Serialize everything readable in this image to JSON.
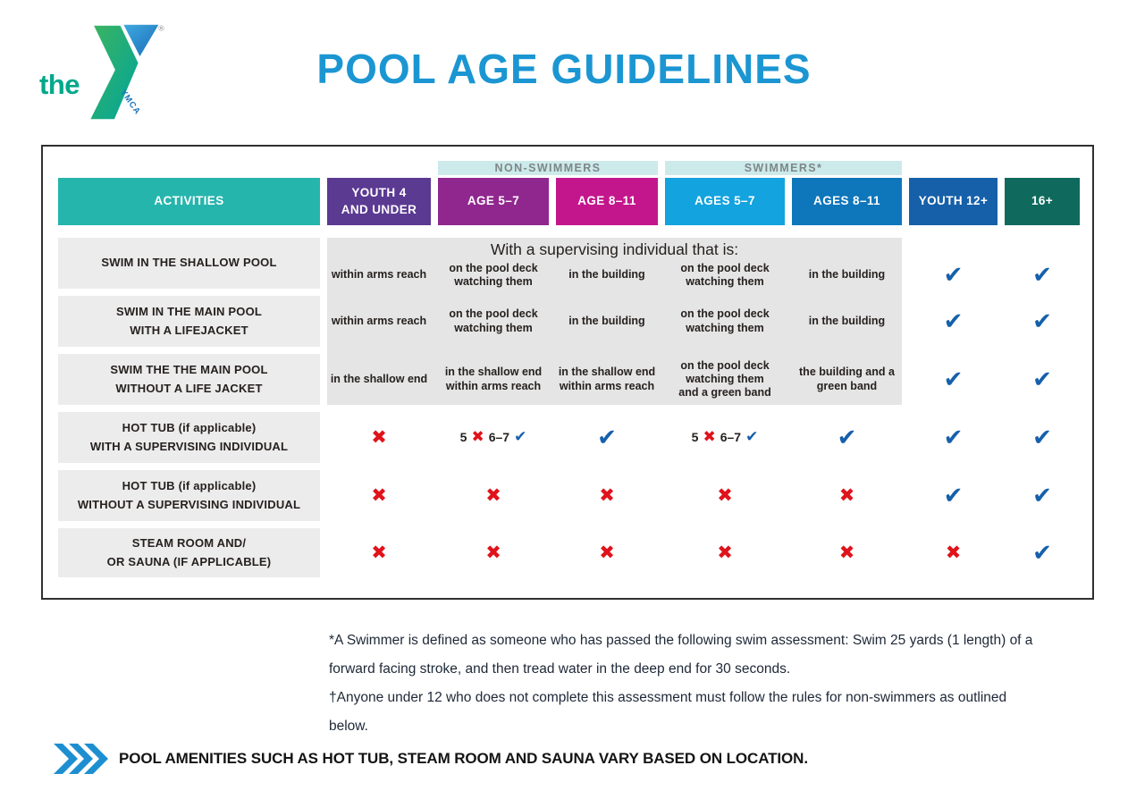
{
  "brand": {
    "the_label": "the",
    "vertical_label": "YMCA",
    "registered_mark": "®"
  },
  "title": "POOL AGE GUIDELINES",
  "table": {
    "group_headers": {
      "non_swimmers": "NON-SWIMMERS",
      "swimmers": "SWIMMERS*"
    },
    "columns": [
      {
        "key": "activities",
        "label": "ACTIVITIES",
        "color": "#26b5ac"
      },
      {
        "key": "youth-4-under",
        "label": "YOUTH 4\nAND UNDER",
        "color": "#5b3a92"
      },
      {
        "key": "ns-age-5-7",
        "label": "AGE 5–7",
        "color": "#90278e",
        "group": "non_swimmers"
      },
      {
        "key": "ns-age-8-11",
        "label": "AGE 8–11",
        "color": "#c4168c",
        "group": "non_swimmers"
      },
      {
        "key": "sw-ages-5-7",
        "label": "AGES 5–7",
        "color": "#13a3de",
        "group": "swimmers"
      },
      {
        "key": "sw-ages-8-11",
        "label": "AGES 8–11",
        "color": "#0e76bb",
        "group": "swimmers"
      },
      {
        "key": "youth-12-plus",
        "label": "YOUTH 12+",
        "color": "#1660a9"
      },
      {
        "key": "16-plus",
        "label": "16+",
        "color": "#0f6a5d"
      }
    ],
    "supervision_heading": "With a supervising individual that is:",
    "rows": [
      {
        "activity": "SWIM IN THE SHALLOW POOL",
        "zone": "supervised",
        "cells": [
          {
            "type": "text",
            "text": "within arms reach"
          },
          {
            "type": "text",
            "text": "on the pool deck\nwatching them"
          },
          {
            "type": "text",
            "text": "in the building"
          },
          {
            "type": "text",
            "text": "on the pool deck\nwatching them"
          },
          {
            "type": "text",
            "text": "in the building"
          },
          {
            "type": "check"
          },
          {
            "type": "check"
          }
        ]
      },
      {
        "activity": "SWIM IN THE MAIN POOL\nWITH A LIFEJACKET",
        "zone": "supervised",
        "cells": [
          {
            "type": "text",
            "text": "within arms reach"
          },
          {
            "type": "text",
            "text": "on the pool deck\nwatching them"
          },
          {
            "type": "text",
            "text": "in the building"
          },
          {
            "type": "text",
            "text": "on the pool deck\nwatching them"
          },
          {
            "type": "text",
            "text": "in the building"
          },
          {
            "type": "check"
          },
          {
            "type": "check"
          }
        ]
      },
      {
        "activity": "SWIM THE THE MAIN POOL\nWITHOUT A LIFE JACKET",
        "zone": "supervised",
        "cells": [
          {
            "type": "text",
            "text": "in the shallow end"
          },
          {
            "type": "text",
            "text": "in the shallow end\nwithin arms reach"
          },
          {
            "type": "text",
            "text": "in the shallow end\nwithin arms reach"
          },
          {
            "type": "text",
            "text": "on the pool deck\nwatching them\nand a green band"
          },
          {
            "type": "text",
            "text": "the building and a\ngreen band"
          },
          {
            "type": "check"
          },
          {
            "type": "check"
          }
        ]
      },
      {
        "activity": "HOT TUB (if applicable)\nWITH A SUPERVISING INDIVIDUAL",
        "cells": [
          {
            "type": "cross"
          },
          {
            "type": "mixed",
            "parts": [
              {
                "text": "5"
              },
              {
                "mark": "cross"
              },
              {
                "text": "6–7"
              },
              {
                "mark": "check"
              }
            ]
          },
          {
            "type": "check"
          },
          {
            "type": "mixed",
            "parts": [
              {
                "text": "5"
              },
              {
                "mark": "cross"
              },
              {
                "text": "6–7"
              },
              {
                "mark": "check"
              }
            ]
          },
          {
            "type": "check"
          },
          {
            "type": "check"
          },
          {
            "type": "check"
          }
        ]
      },
      {
        "activity": "HOT TUB (if applicable)\nWITHOUT A SUPERVISING INDIVIDUAL",
        "cells": [
          {
            "type": "cross"
          },
          {
            "type": "cross"
          },
          {
            "type": "cross"
          },
          {
            "type": "cross"
          },
          {
            "type": "cross"
          },
          {
            "type": "check"
          },
          {
            "type": "check"
          }
        ]
      },
      {
        "activity": "STEAM ROOM AND/\nOR SAUNA (IF APPLICABLE)",
        "cells": [
          {
            "type": "cross"
          },
          {
            "type": "cross"
          },
          {
            "type": "cross"
          },
          {
            "type": "cross"
          },
          {
            "type": "cross"
          },
          {
            "type": "cross"
          },
          {
            "type": "check"
          }
        ]
      }
    ]
  },
  "marks": {
    "check": "✔",
    "cross": "✖",
    "check_color": "#1560ab",
    "cross_color": "#e0131b"
  },
  "footnotes": [
    {
      "text": "*A Swimmer is defined as someone who has passed the following swim assessment: Swim 25 yards (1 length) of a forward facing stroke, and then tread water in the deep end for 30 seconds."
    },
    {
      "text": "†Anyone under 12 who does not complete this assessment must follow the rules for non-swimmers as outlined below."
    }
  ],
  "amenities_note": "POOL AMENITIES SUCH AS HOT TUB, STEAM ROOM AND SAUNA VARY BASED ON LOCATION."
}
